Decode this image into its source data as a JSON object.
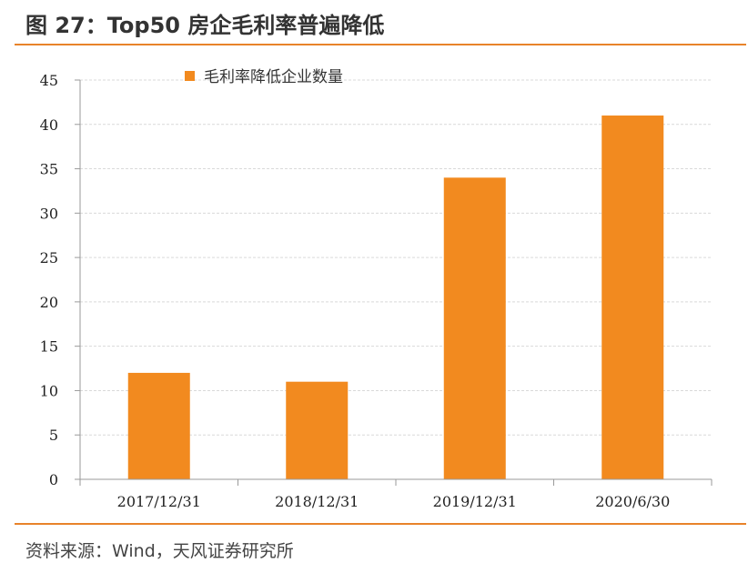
{
  "header": {
    "title": "图 27：Top50 房企毛利率普遍降低"
  },
  "footer": {
    "source": "资料来源：Wind，天风证券研究所"
  },
  "colors": {
    "accent": "#e8832a",
    "bar": "#f28a1f",
    "grid": "#d9d9d9",
    "axis": "#9a9a9a"
  },
  "chart_data": {
    "type": "bar",
    "title": "",
    "xlabel": "",
    "ylabel": "",
    "categories": [
      "2017/12/31",
      "2018/12/31",
      "2019/12/31",
      "2020/6/30"
    ],
    "series": [
      {
        "name": "毛利率降低企业数量",
        "values": [
          12,
          11,
          34,
          41
        ]
      }
    ],
    "ylim": [
      0,
      45
    ],
    "yticks": [
      0,
      5,
      10,
      15,
      20,
      25,
      30,
      35,
      40,
      45
    ],
    "grid": true,
    "legend": "top-center"
  }
}
